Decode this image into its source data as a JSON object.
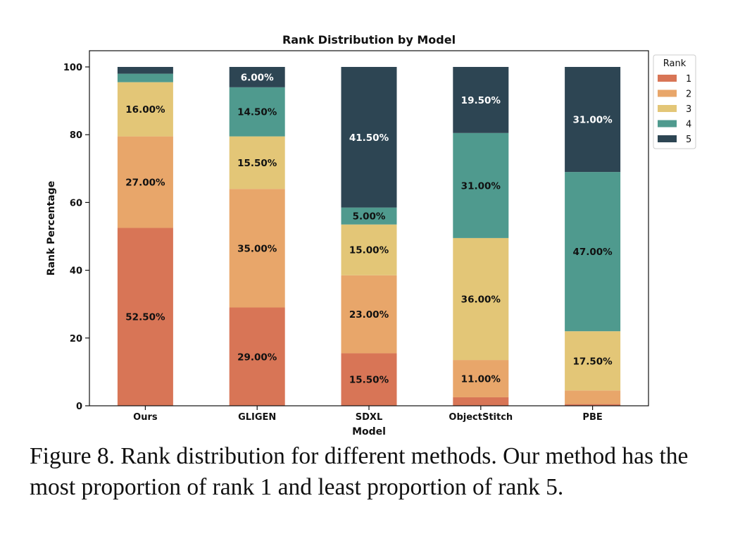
{
  "chart_data": {
    "type": "bar",
    "stacked": true,
    "title": "Rank Distribution by Model",
    "xlabel": "Model",
    "ylabel": "Rank Percentage",
    "ylim": [
      0,
      100
    ],
    "yticks": [
      0,
      20,
      40,
      60,
      80,
      100
    ],
    "categories": [
      "Ours",
      "GLIGEN",
      "SDXL",
      "ObjectStitch",
      "PBE"
    ],
    "series": [
      {
        "name": "1",
        "color": "#D87556",
        "values": [
          52.5,
          29.0,
          15.5,
          2.5,
          0.5
        ],
        "labels": [
          "52.50%",
          "29.00%",
          "15.50%",
          "",
          ""
        ]
      },
      {
        "name": "2",
        "color": "#E8A66A",
        "values": [
          27.0,
          35.0,
          23.0,
          11.0,
          4.0
        ],
        "labels": [
          "27.00%",
          "35.00%",
          "23.00%",
          "11.00%",
          ""
        ]
      },
      {
        "name": "3",
        "color": "#E3C677",
        "values": [
          16.0,
          15.5,
          15.0,
          36.0,
          17.5
        ],
        "labels": [
          "16.00%",
          "15.50%",
          "15.00%",
          "36.00%",
          "17.50%"
        ]
      },
      {
        "name": "4",
        "color": "#4F9A8E",
        "values": [
          2.5,
          14.5,
          5.0,
          31.0,
          47.0
        ],
        "labels": [
          "",
          "14.50%",
          "5.00%",
          "31.00%",
          "47.00%"
        ]
      },
      {
        "name": "5",
        "color": "#2D4553",
        "values": [
          2.0,
          6.0,
          41.5,
          19.5,
          31.0
        ],
        "labels": [
          "",
          "6.00%",
          "41.50%",
          "19.50%",
          "31.00%"
        ]
      }
    ],
    "legend": {
      "title": "Rank",
      "position": "outside top-right"
    },
    "grid": false
  },
  "caption": "Figure 8. Rank distribution for different methods. Our method has the most proportion of rank 1 and least proportion of rank 5."
}
